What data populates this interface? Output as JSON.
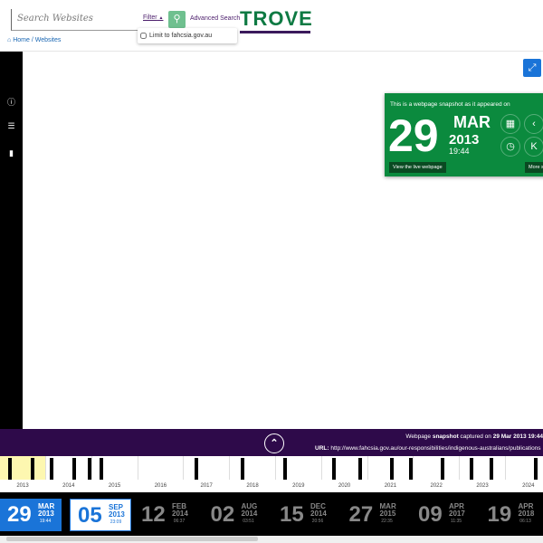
{
  "header": {
    "search_placeholder": "Search Websites",
    "filter_label": "Filter",
    "filter_caret": "▲",
    "search_icon": "🔍",
    "advanced_search": "Advanced Search",
    "logo": "TROVE"
  },
  "filter_dropdown": {
    "option": "Limit to fahcsia.gov.au"
  },
  "breadcrumb": {
    "home": "Home",
    "separator": "/",
    "current": "Websites"
  },
  "snapshot_card": {
    "intro": "This is a webpage snapshot as it appeared on",
    "day": "29",
    "month": "MAR",
    "year": "2013",
    "time": "19:44",
    "live_button": "View the live webpage",
    "more_button": "More snapshots",
    "colors": {
      "background": "#0b8a3e"
    }
  },
  "banner": {
    "caption_prefix": "Webpage ",
    "caption_bold": "snapshot",
    "caption_mid": " captured on ",
    "caption_date": "29 Mar 2013 19:44",
    "url_label": "URL:",
    "url": "http://www.fahcsia.gov.au/our-responsibilities/indigenous-australians/publications"
  },
  "timeline": {
    "years": [
      "2013",
      "2014",
      "2015",
      "2016",
      "2017",
      "2018",
      "2019",
      "2020",
      "2021",
      "2022",
      "2023",
      "2024"
    ]
  },
  "captures": [
    {
      "day": "29",
      "month": "MAR",
      "year": "2013",
      "time": "19:44",
      "state": "selected"
    },
    {
      "day": "05",
      "month": "SEP",
      "year": "2013",
      "time": "23:09",
      "state": "next"
    },
    {
      "day": "12",
      "month": "FEB",
      "year": "2014",
      "time": "06:37"
    },
    {
      "day": "02",
      "month": "AUG",
      "year": "2014",
      "time": "03:51"
    },
    {
      "day": "15",
      "month": "DEC",
      "year": "2014",
      "time": "20:56"
    },
    {
      "day": "27",
      "month": "MAR",
      "year": "2015",
      "time": "22:35"
    },
    {
      "day": "09",
      "month": "APR",
      "year": "2017",
      "time": "11:35"
    },
    {
      "day": "19",
      "month": "APR",
      "year": "2018",
      "time": "06:13"
    }
  ]
}
